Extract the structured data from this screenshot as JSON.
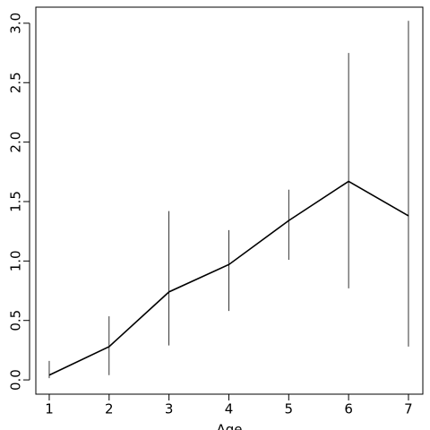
{
  "chart_data": {
    "type": "line",
    "x_label": "Age",
    "x": [
      1,
      2,
      3,
      4,
      5,
      6,
      7
    ],
    "values": [
      0.04,
      0.28,
      0.74,
      0.97,
      1.34,
      1.67,
      1.38
    ],
    "lower": [
      0.015,
      0.04,
      0.29,
      0.58,
      1.01,
      0.77,
      0.28
    ],
    "upper": [
      0.16,
      0.535,
      1.42,
      1.26,
      1.6,
      2.75,
      3.02
    ],
    "color": "#000000",
    "xlim": [
      0.776,
      7.24
    ],
    "ylim": [
      -0.12,
      3.135
    ],
    "xticks": [
      1,
      2,
      3,
      4,
      5,
      6,
      7
    ],
    "yticks": [
      {
        "value": 0,
        "label": "0.0"
      },
      0.5,
      {
        "value": 1,
        "label": "1.0"
      },
      1.5,
      {
        "value": 2,
        "label": "2.0"
      },
      2.5,
      {
        "value": 3,
        "label": "3.0"
      }
    ]
  }
}
